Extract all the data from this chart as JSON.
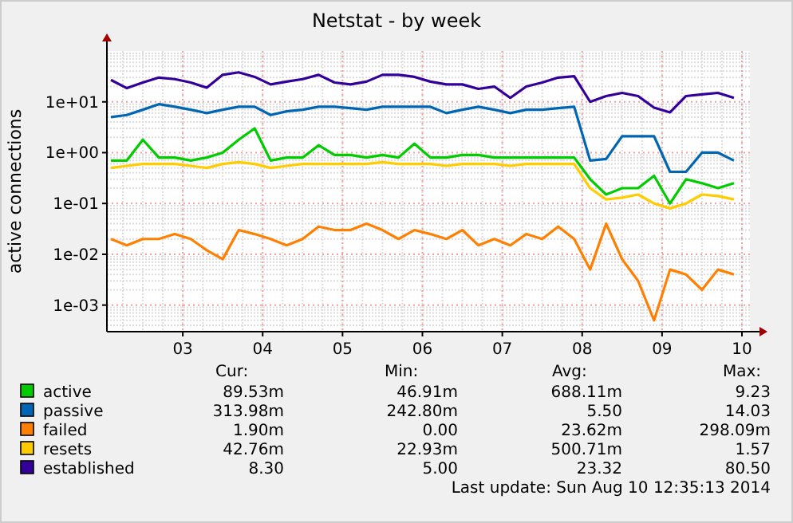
{
  "chart_data": {
    "type": "line",
    "title": "Netstat - by week",
    "ylabel": "active connections",
    "log": true,
    "grid": true,
    "legend": "bottom",
    "line_style": "solid",
    "xlim": [
      2.05,
      10.1
    ],
    "xticks": [
      {
        "value": 3,
        "label": "03"
      },
      {
        "value": 4,
        "label": "04"
      },
      {
        "value": 5,
        "label": "05"
      },
      {
        "value": 6,
        "label": "06"
      },
      {
        "value": 7,
        "label": "07"
      },
      {
        "value": 8,
        "label": "08"
      },
      {
        "value": 9,
        "label": "09"
      },
      {
        "value": 10,
        "label": "10"
      }
    ],
    "ylim": [
      0.0003,
      100
    ],
    "yticks": [
      {
        "value": 0.001,
        "label": "1e-03"
      },
      {
        "value": 0.01,
        "label": "1e-02"
      },
      {
        "value": 0.1,
        "label": "1e-01"
      },
      {
        "value": 1,
        "label": "1e+00"
      },
      {
        "value": 10,
        "label": "1e+01"
      }
    ],
    "x": [
      2.1,
      2.3,
      2.5,
      2.7,
      2.9,
      3.1,
      3.3,
      3.5,
      3.7,
      3.9,
      4.1,
      4.3,
      4.5,
      4.7,
      4.9,
      5.1,
      5.3,
      5.5,
      5.7,
      5.9,
      6.1,
      6.3,
      6.5,
      6.7,
      6.9,
      7.1,
      7.3,
      7.5,
      7.7,
      7.9,
      8.1,
      8.3,
      8.5,
      8.7,
      8.9,
      9.1,
      9.3,
      9.5,
      9.7,
      9.9
    ],
    "series": [
      {
        "name": "active",
        "color": "#00cc00",
        "values": [
          0.7,
          0.7,
          1.8,
          0.8,
          0.8,
          0.7,
          0.8,
          1.0,
          1.8,
          3,
          0.7,
          0.8,
          0.8,
          1.4,
          0.9,
          0.9,
          0.8,
          0.9,
          0.8,
          1.5,
          0.8,
          0.8,
          0.9,
          0.9,
          0.8,
          0.8,
          0.8,
          0.8,
          0.8,
          0.8,
          0.3,
          0.15,
          0.2,
          0.2,
          0.35,
          0.1,
          0.3,
          0.25,
          0.2,
          0.25
        ]
      },
      {
        "name": "passive",
        "color": "#0066b3",
        "values": [
          5,
          5.5,
          7,
          9,
          8,
          7,
          6,
          7,
          8,
          8,
          5.5,
          6.5,
          7,
          8,
          8,
          7.5,
          7,
          8,
          8,
          8,
          8,
          6,
          7,
          8,
          7,
          6,
          7,
          7,
          7.5,
          8,
          0.7,
          0.75,
          2.1,
          2.1,
          2.1,
          0.42,
          0.42,
          1.0,
          1.0,
          0.7
        ]
      },
      {
        "name": "failed",
        "color": "#ff8000",
        "values": [
          0.02,
          0.015,
          0.02,
          0.02,
          0.025,
          0.02,
          0.012,
          0.008,
          0.03,
          0.025,
          0.02,
          0.015,
          0.02,
          0.035,
          0.03,
          0.03,
          0.04,
          0.03,
          0.02,
          0.03,
          0.025,
          0.02,
          0.03,
          0.015,
          0.02,
          0.015,
          0.025,
          0.02,
          0.035,
          0.02,
          0.005,
          0.04,
          0.008,
          0.003,
          0.0005,
          0.005,
          0.004,
          0.002,
          0.005,
          0.004
        ]
      },
      {
        "name": "resets",
        "color": "#ffcc00",
        "values": [
          0.5,
          0.55,
          0.6,
          0.6,
          0.6,
          0.55,
          0.5,
          0.6,
          0.65,
          0.6,
          0.5,
          0.55,
          0.6,
          0.6,
          0.6,
          0.6,
          0.6,
          0.65,
          0.6,
          0.6,
          0.6,
          0.55,
          0.6,
          0.6,
          0.6,
          0.55,
          0.6,
          0.6,
          0.6,
          0.6,
          0.2,
          0.12,
          0.13,
          0.15,
          0.1,
          0.08,
          0.1,
          0.15,
          0.14,
          0.12
        ]
      },
      {
        "name": "established",
        "color": "#330099",
        "values": [
          27,
          18.6,
          24,
          30,
          28,
          24,
          19,
          34,
          38,
          31,
          22,
          25,
          28,
          34,
          24,
          22,
          25,
          34,
          34,
          31,
          25,
          22,
          22,
          18,
          20,
          12,
          20,
          24,
          30,
          32,
          10,
          13,
          15,
          13,
          7.7,
          6.2,
          13,
          14,
          15,
          12
        ]
      }
    ],
    "annotations": [
      "Cur:",
      "Min:",
      "Avg:",
      "Max:",
      "89.53m",
      "46.91m",
      "688.11m",
      "9.23",
      "313.98m",
      "242.80m",
      "5.50",
      "14.03",
      "1.90m",
      "0.00",
      "23.62m",
      "298.09m",
      "42.76m",
      "22.93m",
      "500.71m",
      "1.57",
      "8.30",
      "5.00",
      "23.32",
      "80.50",
      "Last update: Sun Aug 10 12:35:13 2014"
    ]
  }
}
